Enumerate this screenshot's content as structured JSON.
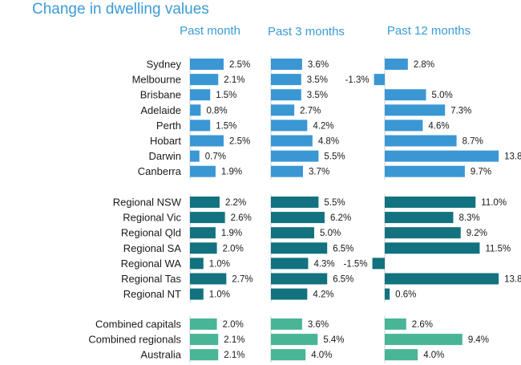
{
  "chart_data": {
    "type": "bar",
    "orientation": "horizontal",
    "title": "Change in dwelling values",
    "columns": [
      "Past month",
      "Past 3 months",
      "Past 12 months"
    ],
    "groups": [
      {
        "color": "#3a97d4",
        "rows": [
          {
            "label": "Sydney",
            "values": [
              2.5,
              3.6,
              2.8
            ]
          },
          {
            "label": "Melbourne",
            "values": [
              2.1,
              3.5,
              -1.3
            ]
          },
          {
            "label": "Brisbane",
            "values": [
              1.5,
              3.5,
              5.0
            ]
          },
          {
            "label": "Adelaide",
            "values": [
              0.8,
              2.7,
              7.3
            ]
          },
          {
            "label": "Perth",
            "values": [
              1.5,
              4.2,
              4.6
            ]
          },
          {
            "label": "Hobart",
            "values": [
              2.5,
              4.8,
              8.7
            ]
          },
          {
            "label": "Darwin",
            "values": [
              0.7,
              5.5,
              13.8
            ]
          },
          {
            "label": "Canberra",
            "values": [
              1.9,
              3.7,
              9.7
            ]
          }
        ]
      },
      {
        "color": "#12727f",
        "rows": [
          {
            "label": "Regional NSW",
            "values": [
              2.2,
              5.5,
              11.0
            ]
          },
          {
            "label": "Regional Vic",
            "values": [
              2.6,
              6.2,
              8.3
            ]
          },
          {
            "label": "Regional Qld",
            "values": [
              1.9,
              5.0,
              9.2
            ]
          },
          {
            "label": "Regional SA",
            "values": [
              2.0,
              6.5,
              11.5
            ]
          },
          {
            "label": "Regional WA",
            "values": [
              1.0,
              4.3,
              -1.5
            ]
          },
          {
            "label": "Regional Tas",
            "values": [
              2.7,
              6.5,
              13.8
            ]
          },
          {
            "label": "Regional NT",
            "values": [
              1.0,
              4.2,
              0.6
            ]
          }
        ]
      },
      {
        "color": "#48b597",
        "rows": [
          {
            "label": "Combined capitals",
            "values": [
              2.0,
              3.6,
              2.6
            ]
          },
          {
            "label": "Combined regionals",
            "values": [
              2.1,
              5.4,
              9.4
            ]
          },
          {
            "label": "Australia",
            "values": [
              2.1,
              4.0,
              4.0
            ]
          }
        ]
      }
    ]
  }
}
